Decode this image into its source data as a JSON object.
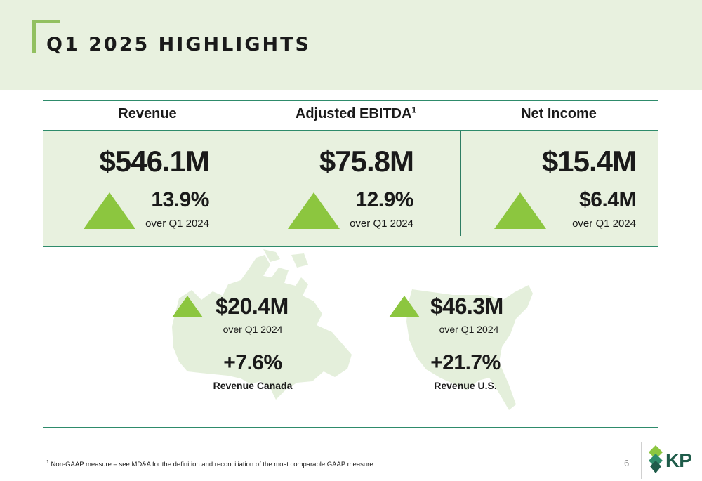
{
  "header": {
    "title": "Q1 2025 HIGHLIGHTS"
  },
  "kpis": [
    {
      "label": "Revenue",
      "value": "$546.1M",
      "change": "13.9%",
      "period": "over Q1 2024"
    },
    {
      "label": "Adjusted EBITDA",
      "label_sup": "1",
      "value": "$75.8M",
      "change": "12.9%",
      "period": "over Q1 2024"
    },
    {
      "label": "Net Income",
      "value": "$15.4M",
      "change": "$6.4M",
      "period": "over Q1 2024"
    }
  ],
  "regions": [
    {
      "value": "$20.4M",
      "period": "over Q1 2024",
      "growth": "+7.6%",
      "label": "Revenue Canada"
    },
    {
      "value": "$46.3M",
      "period": "over Q1 2024",
      "growth": "+21.7%",
      "label": "Revenue U.S."
    }
  ],
  "footer": {
    "footnote_marker": "1",
    "footnote": "Non-GAAP measure – see MD&A for the definition and reconciliation of the most comparable GAAP measure.",
    "page_number": "6",
    "logo_text": "KP"
  },
  "colors": {
    "accent_green": "#8cc63f",
    "band": "#e8f1df",
    "rule": "#2e8b6b",
    "logo": "#1f5c4a"
  }
}
